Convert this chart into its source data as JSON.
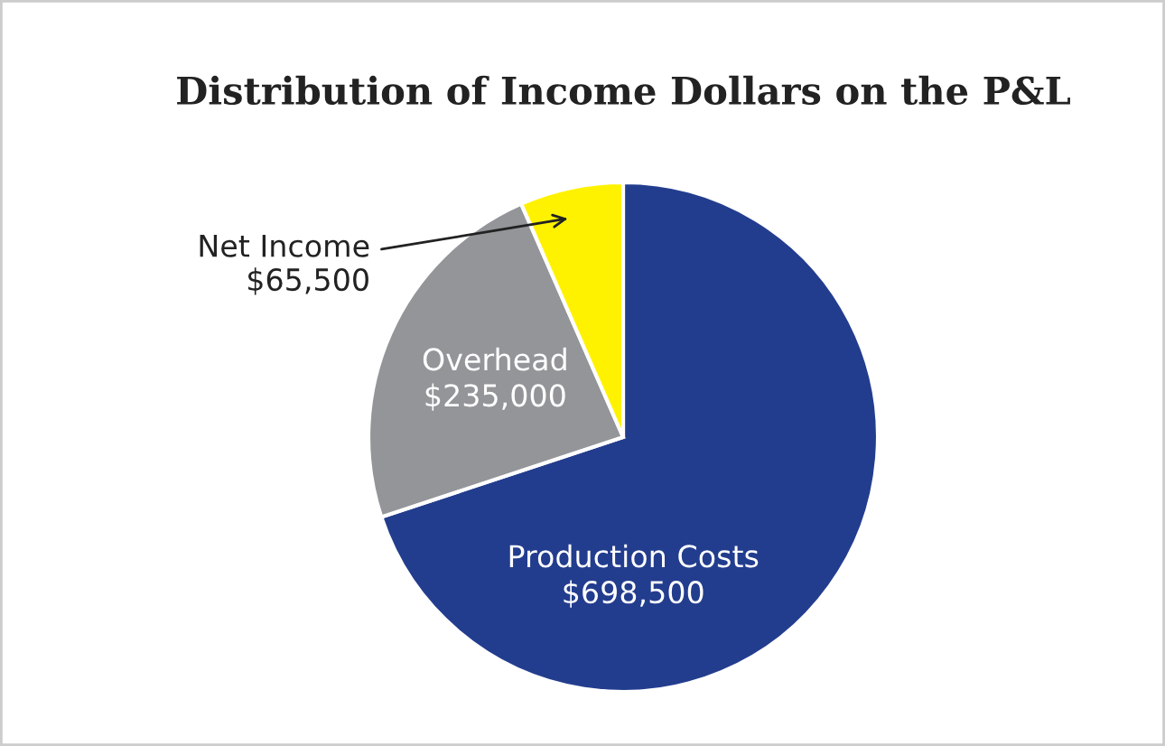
{
  "chart_data": {
    "type": "pie",
    "title": "Distribution of Income Dollars on the P&L",
    "categories": [
      "Production Costs",
      "Overhead",
      "Net Income"
    ],
    "values": [
      698500,
      235000,
      65500
    ],
    "value_labels": [
      "$698,500",
      "$235,000",
      "$65,500"
    ],
    "colors": [
      "#233d8e",
      "#939598",
      "#fff200"
    ],
    "legend": false
  }
}
